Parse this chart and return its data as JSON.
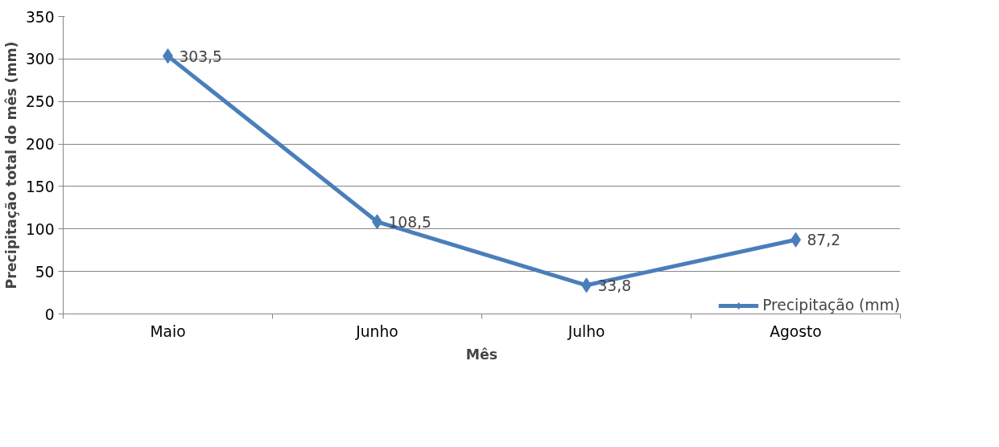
{
  "chart_data": {
    "type": "line",
    "xlabel": "Mês",
    "ylabel": "Precipitação total do mês (mm)",
    "categories": [
      "Maio",
      "Junho",
      "Julho",
      "Agosto"
    ],
    "series": [
      {
        "name": "Precipitação (mm)",
        "color": "#4a7ebb",
        "values": [
          303.5,
          108.5,
          33.8,
          87.2
        ],
        "value_labels": [
          "303,5",
          "108,5",
          "33,8",
          "87,2"
        ]
      }
    ],
    "ylim": [
      0,
      350
    ],
    "yticks": [
      0,
      50,
      100,
      150,
      200,
      250,
      300,
      350
    ],
    "grid": "y",
    "legend": "bottom right",
    "marker": "diamond",
    "line_style": "solid"
  }
}
